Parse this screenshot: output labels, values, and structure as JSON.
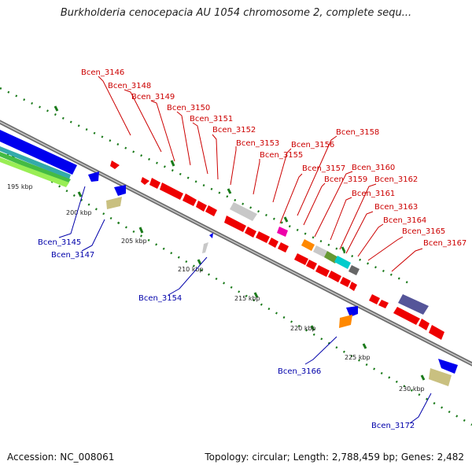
{
  "title": "Burkholderia cenocepacia AU 1054 chromosome 2, complete sequ...",
  "footer": {
    "accession": "Accession: NC_008061",
    "topology": "Topology: circular; Length: 2,788,459 bp; Genes: 2,482"
  },
  "colors": {
    "backbone": "#888888",
    "forward_label": "#cc0000",
    "reverse_label": "#0000aa",
    "tick": "#1a7a1a"
  },
  "scale_labels": [
    "195 kbp",
    "200 kbp",
    "205 kbp",
    "210 kbp",
    "215 kbp",
    "220 kbp",
    "225 kbp",
    "230 kbp"
  ],
  "genes": {
    "forward": [
      "Bcen_3146",
      "Bcen_3148",
      "Bcen_3149",
      "Bcen_3150",
      "Bcen_3151",
      "Bcen_3152",
      "Bcen_3153",
      "Bcen_3155",
      "Bcen_3156",
      "Bcen_3157",
      "Bcen_3158",
      "Bcen_3159",
      "Bcen_3160",
      "Bcen_3161",
      "Bcen_3162",
      "Bcen_3163",
      "Bcen_3164",
      "Bcen_3165",
      "Bcen_3167"
    ],
    "reverse": [
      "Bcen_3145",
      "Bcen_3147",
      "Bcen_3154",
      "Bcen_3166",
      "Bcen_3172"
    ]
  }
}
